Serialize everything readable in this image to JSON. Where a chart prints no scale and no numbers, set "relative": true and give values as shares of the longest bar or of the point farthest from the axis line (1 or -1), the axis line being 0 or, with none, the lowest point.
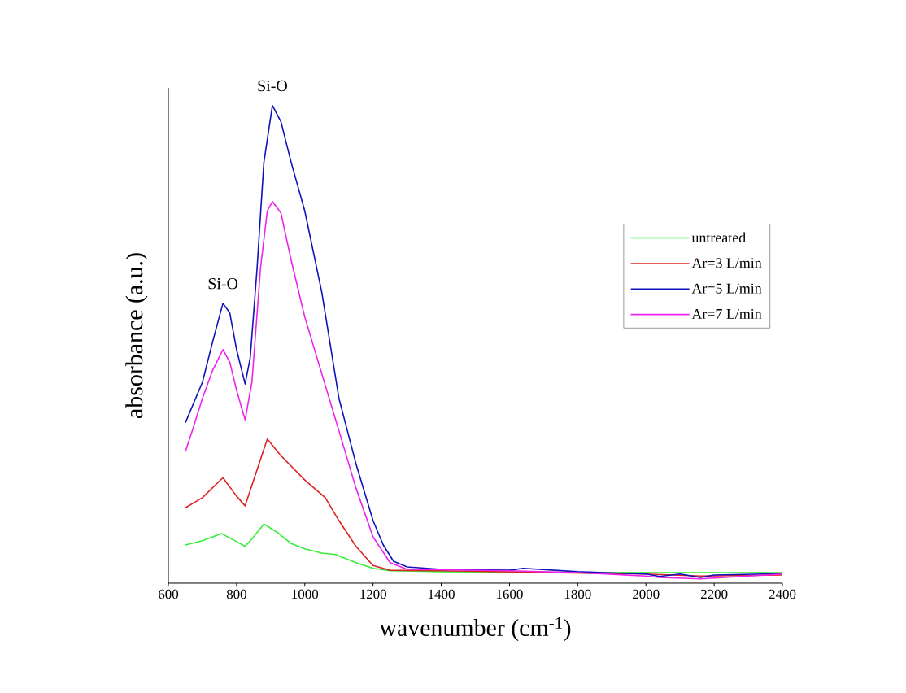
{
  "chart_data": {
    "type": "line",
    "relative": true,
    "xlabel": "wavenumber (cm$^{-1}$)",
    "ylabel": "absorbance (a.u.)",
    "xlim": [
      600,
      2400
    ],
    "xticks": [
      600,
      800,
      1000,
      1200,
      1400,
      1600,
      1800,
      2000,
      2200,
      2400
    ],
    "legend": "right",
    "grid": false,
    "marker": "none",
    "line_style": "solid",
    "annotations": [
      {
        "text": "Si-O",
        "x": 760,
        "y": 0.586
      },
      {
        "text": "Si-O",
        "x": 905,
        "y": 1.0
      }
    ],
    "series": [
      {
        "name": "untreated",
        "color": "#33ee33",
        "x": [
          650,
          700,
          755,
          800,
          825,
          850,
          880,
          920,
          960,
          1000,
          1050,
          1090,
          1150,
          1200,
          1250,
          1400,
          2000,
          2400
        ],
        "values": [
          0.08,
          0.089,
          0.104,
          0.087,
          0.077,
          0.097,
          0.124,
          0.106,
          0.083,
          0.072,
          0.063,
          0.06,
          0.043,
          0.031,
          0.026,
          0.024,
          0.022,
          0.022
        ]
      },
      {
        "name": "Ar=3 L/min",
        "color": "#dd2222",
        "x": [
          650,
          700,
          760,
          800,
          825,
          850,
          890,
          930,
          1000,
          1060,
          1100,
          1150,
          1200,
          1250,
          1400,
          2000,
          2160,
          2400
        ],
        "values": [
          0.158,
          0.179,
          0.221,
          0.182,
          0.162,
          0.216,
          0.302,
          0.267,
          0.216,
          0.179,
          0.131,
          0.077,
          0.037,
          0.027,
          0.026,
          0.019,
          0.015,
          0.017
        ]
      },
      {
        "name": "Ar=5 L/min",
        "color": "#1111bb",
        "x": [
          650,
          700,
          730,
          760,
          780,
          800,
          825,
          840,
          860,
          880,
          905,
          930,
          960,
          1000,
          1050,
          1100,
          1150,
          1200,
          1230,
          1260,
          1300,
          1400,
          1600,
          1640,
          1800,
          2000,
          2040,
          2100,
          2160,
          2200,
          2400
        ],
        "values": [
          0.336,
          0.421,
          0.506,
          0.586,
          0.566,
          0.489,
          0.417,
          0.472,
          0.659,
          0.881,
          1.0,
          0.966,
          0.881,
          0.779,
          0.608,
          0.387,
          0.25,
          0.131,
          0.08,
          0.046,
          0.034,
          0.029,
          0.027,
          0.031,
          0.024,
          0.019,
          0.014,
          0.019,
          0.012,
          0.017,
          0.02
        ]
      },
      {
        "name": "Ar=7 L/min",
        "color": "#ee22ee",
        "x": [
          650,
          670,
          700,
          730,
          760,
          780,
          800,
          825,
          845,
          870,
          890,
          905,
          930,
          960,
          1000,
          1050,
          1100,
          1150,
          1200,
          1250,
          1300,
          1600,
          1800,
          2000,
          2040,
          2160,
          2400
        ],
        "values": [
          0.276,
          0.319,
          0.387,
          0.446,
          0.489,
          0.463,
          0.404,
          0.342,
          0.421,
          0.659,
          0.779,
          0.799,
          0.775,
          0.676,
          0.557,
          0.438,
          0.319,
          0.199,
          0.097,
          0.043,
          0.029,
          0.026,
          0.022,
          0.015,
          0.012,
          0.009,
          0.019
        ]
      }
    ]
  }
}
